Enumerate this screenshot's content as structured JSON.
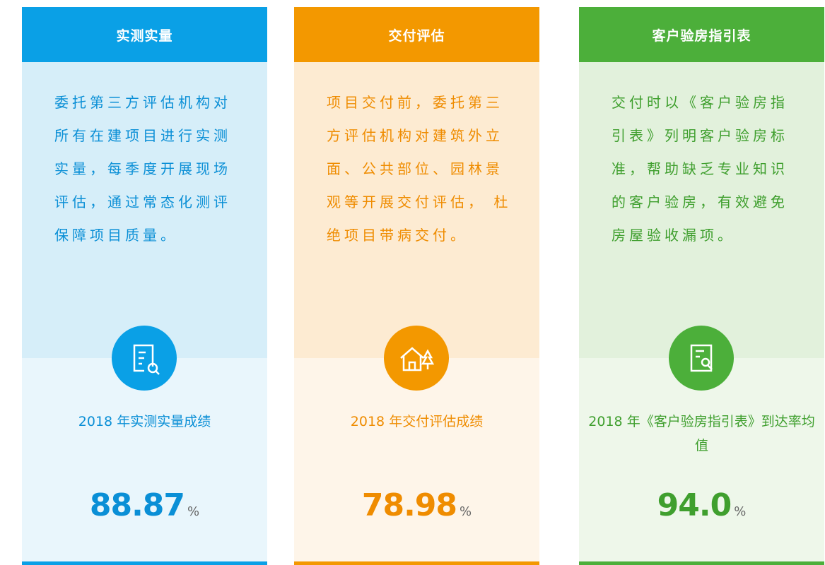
{
  "cards": [
    {
      "title": "实测实量",
      "description": "委托第三方评估机构对所有在建项目进行实测实量，每季度开展现场评估，通过常态化测评保障项目质量。",
      "metric_label": "2018 年实测实量成绩",
      "value": "88.87",
      "unit": "%"
    },
    {
      "title": "交付评估",
      "description": "项目交付前，委托第三方评估机构对建筑外立面、公共部位、园林景观等开展交付评估， 杜绝项目带病交付。",
      "metric_label": "2018 年交付评估成绩",
      "value": "78.98",
      "unit": "%"
    },
    {
      "title": "客户验房指引表",
      "description": "交付时以《客户验房指引表》列明客户验房标准，帮助缺乏专业知识的客户验房，有效避免房屋验收漏项。",
      "metric_label": "2018 年《客户验房指引表》到达率均值",
      "value": "94.0",
      "unit": "%"
    }
  ]
}
